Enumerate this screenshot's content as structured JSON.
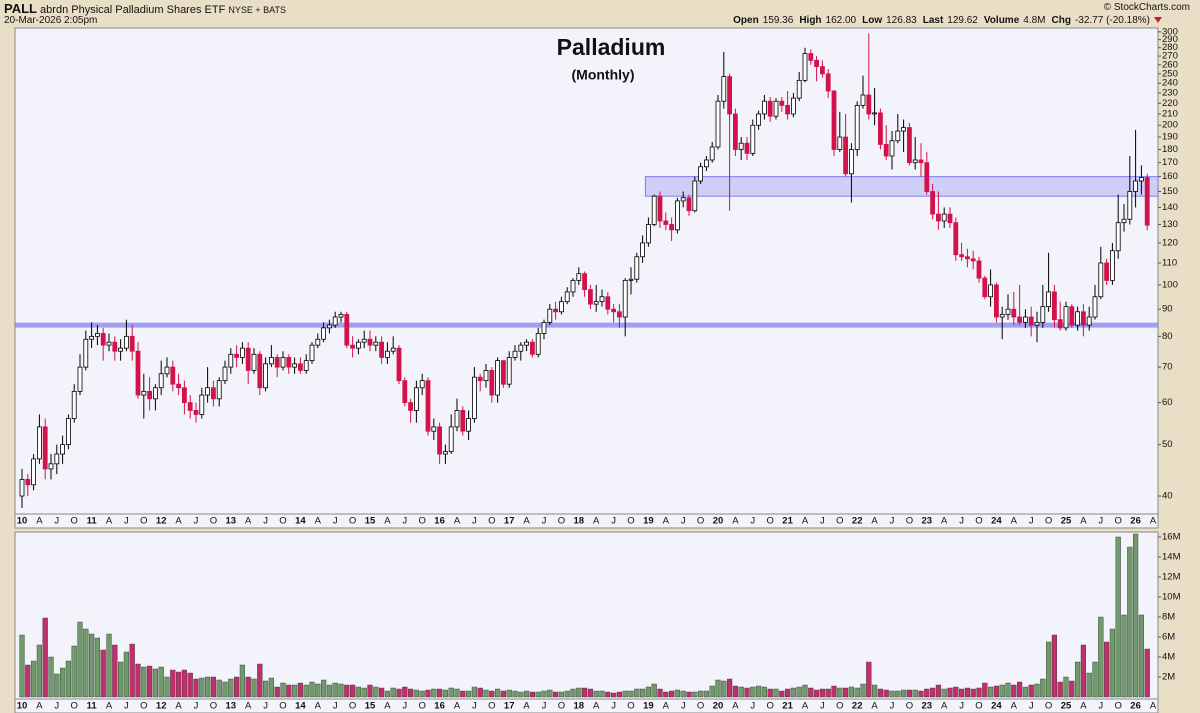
{
  "header": {
    "symbol": "PALL",
    "name": "abrdn Physical Palladium Shares ETF",
    "exchange": "NYSE + BATS",
    "date": "20-Mar-2026 2:05pm",
    "source": "© StockCharts.com",
    "quote": [
      {
        "label": "Open",
        "value": "159.36"
      },
      {
        "label": "High",
        "value": "162.00"
      },
      {
        "label": "Low",
        "value": "126.83"
      },
      {
        "label": "Last",
        "value": "129.62"
      },
      {
        "label": "Volume",
        "value": "4.8M"
      },
      {
        "label": "Chg",
        "value": "-32.77 (-20.18%)"
      }
    ]
  },
  "chart_data": {
    "type": "candlestick",
    "title": "Palladium",
    "subtitle": "(Monthly)",
    "log_scale": true,
    "up_color": "#ffffff",
    "down_color": "#d2124a",
    "vol_up_color": "#6f9a6c",
    "vol_down_color": "#c0306a",
    "title_color": "#1010e0",
    "ylim": [
      37,
      305
    ],
    "yticks": [
      40,
      50,
      60,
      70,
      80,
      90,
      100,
      110,
      120,
      130,
      140,
      150,
      160,
      170,
      180,
      190,
      200,
      210,
      220,
      230,
      240,
      250,
      260,
      270,
      280,
      290,
      300
    ],
    "volume_ylim": [
      0,
      16.5
    ],
    "volume_yticks": [
      {
        "value": 2,
        "label": "2M"
      },
      {
        "value": 4,
        "label": "4M"
      },
      {
        "value": 6,
        "label": "6M"
      },
      {
        "value": 8,
        "label": "8M"
      },
      {
        "value": 10,
        "label": "10M"
      },
      {
        "value": 12,
        "label": "12M"
      },
      {
        "value": 14,
        "label": "14M"
      },
      {
        "value": 16,
        "label": "16M"
      }
    ],
    "hlines": [
      84
    ],
    "zones": [
      {
        "from": 108,
        "low": 147,
        "high": 160
      }
    ],
    "overlay_color": "#7b7bf0",
    "categories": [
      "10",
      null,
      null,
      "A",
      null,
      null,
      "J",
      null,
      null,
      "O",
      null,
      null,
      "11",
      null,
      null,
      "A",
      null,
      null,
      "J",
      null,
      null,
      "O",
      null,
      null,
      "12",
      null,
      null,
      "A",
      null,
      null,
      "J",
      null,
      null,
      "O",
      null,
      null,
      "13",
      null,
      null,
      "A",
      null,
      null,
      "J",
      null,
      null,
      "O",
      null,
      null,
      "14",
      null,
      null,
      "A",
      null,
      null,
      "J",
      null,
      null,
      "O",
      null,
      null,
      "15",
      null,
      null,
      "A",
      null,
      null,
      "J",
      null,
      null,
      "O",
      null,
      null,
      "16",
      null,
      null,
      "A",
      null,
      null,
      "J",
      null,
      null,
      "O",
      null,
      null,
      "17",
      null,
      null,
      "A",
      null,
      null,
      "J",
      null,
      null,
      "O",
      null,
      null,
      "18",
      null,
      null,
      "A",
      null,
      null,
      "J",
      null,
      null,
      "O",
      null,
      null,
      "19",
      null,
      null,
      "A",
      null,
      null,
      "J",
      null,
      null,
      "O",
      null,
      null,
      "20",
      null,
      null,
      "A",
      null,
      null,
      "J",
      null,
      null,
      "O",
      null,
      null,
      "21",
      null,
      null,
      "A",
      null,
      null,
      "J",
      null,
      null,
      "O",
      null,
      null,
      "22",
      null,
      null,
      "A",
      null,
      null,
      "J",
      null,
      null,
      "O",
      null,
      null,
      "23",
      null,
      null,
      "A",
      null,
      null,
      "J",
      null,
      null,
      "O",
      null,
      null,
      "24",
      null,
      null,
      "A",
      null,
      null,
      "J",
      null,
      null,
      "O",
      null,
      null,
      "25",
      null,
      null,
      "A",
      null,
      null,
      "J",
      null,
      null,
      "O",
      null,
      null,
      "26",
      null,
      null,
      "A"
    ],
    "open": [
      40,
      43,
      42,
      47,
      54,
      45,
      46,
      48,
      50,
      56,
      63,
      70,
      79,
      80,
      81,
      77,
      78,
      75,
      76,
      80,
      75,
      62,
      63,
      61,
      64,
      68,
      70,
      65,
      64,
      60,
      58,
      57,
      62,
      64,
      61,
      66,
      70,
      74,
      73,
      76,
      69,
      74,
      64,
      71,
      73,
      70,
      73,
      70,
      71,
      69,
      72,
      77,
      79,
      83,
      84,
      87,
      88,
      77,
      76,
      78,
      79,
      77,
      78,
      73,
      75,
      76,
      66,
      60,
      58,
      64,
      66,
      53,
      54,
      48,
      48.5,
      54,
      58,
      53,
      56,
      67,
      66,
      69,
      62,
      72,
      65,
      73,
      75,
      77,
      78,
      74,
      81,
      85,
      90,
      89,
      93,
      97,
      102,
      105,
      98,
      92,
      93,
      95,
      90,
      89,
      87,
      102,
      102.5,
      113,
      120,
      130,
      147,
      132,
      130,
      127,
      144,
      146,
      138,
      157,
      167,
      172,
      182,
      222,
      247,
      210,
      180,
      185,
      177,
      200,
      210,
      222,
      208,
      222,
      218,
      210,
      225,
      243,
      273,
      265,
      258,
      250,
      232,
      180,
      190,
      162,
      180,
      218,
      228,
      210,
      211,
      184,
      175,
      187,
      195,
      198,
      170,
      172,
      170,
      150,
      136,
      132,
      136,
      131,
      114,
      113,
      112,
      111,
      103,
      95,
      100,
      87,
      88,
      90,
      87,
      85,
      87,
      84,
      85,
      91,
      97,
      86,
      83,
      91,
      84,
      89,
      84,
      87,
      95,
      110,
      102,
      116,
      131,
      133,
      150,
      157,
      159.36,
      null
    ],
    "high": [
      45,
      44,
      48,
      57,
      56,
      48,
      50,
      52,
      57,
      65,
      74,
      82,
      85,
      84,
      83,
      81,
      80,
      79,
      86,
      84,
      78,
      68,
      67,
      65,
      72,
      73,
      72,
      68,
      66,
      62,
      60,
      64,
      70,
      66,
      67,
      72,
      76,
      77,
      78,
      78,
      76,
      75,
      73,
      77,
      74,
      75,
      74,
      73,
      73,
      74,
      78,
      81,
      85,
      86,
      89,
      89,
      89,
      80,
      79,
      82,
      82,
      80,
      80,
      78,
      80,
      77,
      67,
      61,
      66,
      68,
      67,
      56,
      55,
      50,
      57,
      61,
      59,
      58,
      70,
      68,
      71,
      70,
      73,
      72,
      75,
      77,
      78,
      79,
      79,
      83,
      86,
      92,
      93,
      95,
      99,
      103,
      108,
      106,
      100,
      100,
      98,
      97,
      92,
      92,
      103,
      108,
      115,
      124,
      134,
      148,
      150,
      137,
      134,
      146,
      150,
      148,
      160,
      170,
      175,
      186,
      228,
      275,
      250,
      215,
      190,
      190,
      205,
      213,
      228,
      226,
      225,
      226,
      232,
      230,
      252,
      280,
      278,
      270,
      265,
      255,
      233,
      212,
      210,
      185,
      222,
      248,
      298,
      235,
      215,
      200,
      195,
      210,
      205,
      202,
      190,
      185,
      178,
      155,
      150,
      140,
      140,
      134,
      120,
      117,
      116,
      113,
      104,
      107,
      101,
      91,
      96,
      97,
      100,
      90,
      91,
      89,
      100,
      115,
      100,
      93,
      93,
      92,
      91,
      92,
      91,
      100,
      118,
      112,
      120,
      148,
      142,
      175,
      196,
      168,
      162,
      null
    ],
    "low": [
      38,
      40,
      41,
      46,
      43,
      43,
      44,
      46,
      49,
      55,
      62,
      69,
      76,
      77,
      72,
      75,
      72,
      72,
      75,
      72,
      61,
      56,
      58,
      58,
      62,
      67,
      63,
      62,
      57,
      56,
      55,
      56,
      60,
      59,
      59,
      65,
      68,
      70,
      71,
      65,
      68,
      62,
      63,
      70,
      67,
      69,
      68,
      68,
      68,
      68,
      71,
      76,
      78,
      81,
      83,
      85,
      76,
      73,
      74,
      76,
      75,
      75,
      71,
      71,
      74,
      65,
      59,
      55,
      55,
      62,
      52,
      51,
      46,
      46,
      48,
      53,
      52,
      51,
      55,
      63,
      64,
      60,
      60,
      64,
      64,
      72,
      72,
      75,
      73,
      73,
      79,
      84,
      86,
      88,
      92,
      95,
      100,
      95,
      90,
      89,
      91,
      88,
      85,
      83,
      80,
      96,
      101,
      110,
      118,
      129,
      128,
      127,
      121,
      125,
      140,
      135,
      137,
      155,
      164,
      170,
      180,
      215,
      138,
      175,
      172,
      172,
      175,
      196,
      205,
      203,
      205,
      212,
      205,
      207,
      222,
      241,
      260,
      242,
      246,
      225,
      175,
      178,
      160,
      143,
      175,
      215,
      205,
      200,
      180,
      172,
      165,
      185,
      178,
      168,
      165,
      160,
      148,
      133,
      127,
      128,
      128,
      111,
      111,
      108,
      107,
      101,
      94,
      91,
      85,
      79,
      86,
      84,
      84,
      83,
      80,
      78,
      83,
      89,
      83,
      82,
      82,
      83,
      82,
      80,
      82,
      86,
      94,
      100,
      100,
      112,
      126,
      130,
      140,
      148,
      126.83,
      null
    ],
    "close": [
      43,
      42,
      47,
      54,
      45,
      46,
      48,
      50,
      56,
      63,
      70,
      79,
      80,
      81,
      77,
      78,
      75,
      76,
      80,
      75,
      62,
      63,
      61,
      64,
      68,
      70,
      65,
      64,
      60,
      58,
      57,
      62,
      64,
      61,
      66,
      70,
      74,
      73,
      76,
      69,
      74,
      64,
      71,
      73,
      70,
      73,
      70,
      71,
      69,
      72,
      77,
      79,
      83,
      84,
      87,
      88,
      77,
      76,
      78,
      79,
      77,
      78,
      73,
      75,
      76,
      66,
      60,
      58,
      64,
      66,
      53,
      54,
      48,
      48.5,
      54,
      58,
      53,
      56,
      67,
      66,
      69,
      62,
      72,
      65,
      73,
      75,
      77,
      78,
      74,
      81,
      85,
      90,
      89,
      93,
      97,
      102,
      105,
      98,
      92,
      93,
      95,
      90,
      89,
      87,
      102,
      102.5,
      113,
      120,
      130,
      147,
      132,
      130,
      127,
      144,
      146,
      138,
      157,
      167,
      172,
      182,
      222,
      247,
      210,
      180,
      185,
      177,
      200,
      210,
      222,
      208,
      222,
      218,
      210,
      225,
      243,
      273,
      265,
      258,
      250,
      232,
      180,
      190,
      162,
      180,
      218,
      228,
      210,
      211,
      184,
      175,
      187,
      195,
      198,
      170,
      172,
      170,
      150,
      136,
      132,
      136,
      131,
      114,
      113,
      112,
      111,
      103,
      95,
      100,
      87,
      88,
      90,
      87,
      85,
      87,
      84,
      85,
      91,
      97,
      86,
      83,
      91,
      84,
      89,
      84,
      87,
      95,
      110,
      102,
      116,
      131,
      133,
      150,
      157,
      159.36,
      129.62,
      null
    ],
    "volume": [
      6.2,
      3.2,
      3.6,
      5.2,
      7.9,
      4.0,
      2.3,
      2.9,
      3.6,
      5.1,
      7.5,
      6.8,
      6.3,
      5.9,
      4.7,
      6.3,
      5.2,
      3.5,
      4.5,
      5.3,
      3.3,
      3.0,
      3.1,
      2.8,
      3.0,
      2.0,
      2.7,
      2.5,
      2.7,
      2.4,
      1.8,
      1.9,
      2.0,
      2.0,
      1.7,
      1.5,
      1.8,
      2.0,
      3.2,
      2.0,
      1.8,
      3.3,
      1.6,
      1.9,
      1.0,
      1.4,
      1.2,
      1.2,
      1.4,
      1.2,
      1.5,
      1.3,
      1.7,
      1.2,
      1.4,
      1.3,
      1.2,
      1.2,
      1.0,
      0.9,
      1.2,
      1.0,
      0.9,
      0.6,
      0.9,
      0.8,
      1.0,
      0.8,
      0.7,
      0.6,
      0.7,
      0.8,
      0.8,
      0.7,
      0.9,
      0.8,
      0.6,
      0.6,
      1.0,
      0.9,
      0.7,
      0.6,
      0.8,
      0.6,
      0.7,
      0.6,
      0.5,
      0.6,
      0.5,
      0.5,
      0.6,
      0.7,
      0.5,
      0.5,
      0.6,
      0.8,
      0.9,
      0.9,
      0.8,
      0.6,
      0.6,
      0.5,
      0.4,
      0.5,
      0.6,
      0.6,
      0.8,
      0.8,
      1.0,
      1.3,
      0.8,
      0.5,
      0.6,
      0.7,
      0.6,
      0.5,
      0.5,
      0.6,
      0.6,
      1.1,
      1.7,
      1.6,
      1.8,
      1.1,
      1.0,
      0.9,
      1.0,
      1.1,
      1.0,
      0.8,
      0.8,
      0.6,
      0.8,
      0.9,
      1.0,
      1.2,
      0.9,
      0.7,
      0.8,
      0.8,
      1.1,
      0.9,
      0.9,
      1.0,
      0.9,
      1.3,
      3.5,
      1.2,
      0.8,
      0.7,
      0.6,
      0.6,
      0.7,
      0.7,
      0.7,
      0.6,
      0.8,
      0.9,
      1.2,
      0.8,
      0.9,
      1.0,
      0.8,
      0.9,
      0.8,
      0.9,
      1.4,
      1.0,
      1.1,
      1.2,
      1.4,
      1.2,
      1.5,
      1.0,
      1.2,
      1.3,
      1.8,
      5.5,
      6.2,
      1.5,
      2.0,
      1.6,
      3.5,
      5.2,
      2.4,
      3.5,
      8.0,
      5.5,
      6.8,
      16.0,
      8.2,
      15.0,
      16.3,
      8.2,
      4.8,
      null
    ]
  }
}
